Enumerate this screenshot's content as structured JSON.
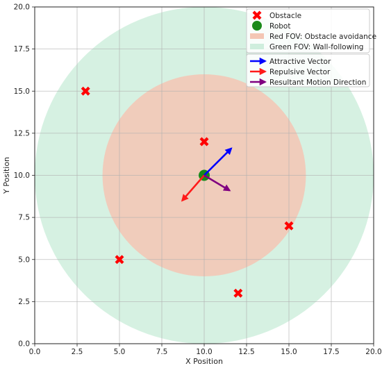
{
  "chart_data": {
    "type": "scatter",
    "xlabel": "X Position",
    "ylabel": "Y Position",
    "xlim": [
      0,
      20
    ],
    "ylim": [
      0,
      20
    ],
    "xticks": [
      "0.0",
      "2.5",
      "5.0",
      "7.5",
      "10.0",
      "12.5",
      "15.0",
      "17.5",
      "20.0"
    ],
    "yticks": [
      "0.0",
      "2.5",
      "5.0",
      "7.5",
      "10.0",
      "12.5",
      "15.0",
      "17.5",
      "20.0"
    ],
    "grid": true,
    "legend_position": "top-right",
    "obstacles": {
      "name": "Obstacle",
      "color": "#ff0000",
      "x": [
        3,
        10,
        15,
        5,
        12
      ],
      "y": [
        15,
        12,
        7,
        5,
        3
      ]
    },
    "robot": {
      "name": "Robot",
      "color": "#1a8a1a",
      "x": 10,
      "y": 10
    },
    "fov_regions": [
      {
        "name": "Red FOV: Obstacle avoidance",
        "center": [
          10,
          10
        ],
        "radius": 6,
        "color": "#f4c6b4"
      },
      {
        "name": "Green FOV: Wall-following",
        "center": [
          10,
          10
        ],
        "radius": 10,
        "color": "#cfeedd"
      }
    ],
    "vectors": [
      {
        "name": "Attractive Vector",
        "color": "#0000ff",
        "from": [
          10,
          10
        ],
        "to": [
          11.6,
          11.6
        ]
      },
      {
        "name": "Repulsive Vector",
        "color": "#ff1a1a",
        "from": [
          10,
          10
        ],
        "to": [
          8.7,
          8.5
        ]
      },
      {
        "name": "Resultant Motion Direction",
        "color": "#800080",
        "from": [
          10,
          10
        ],
        "to": [
          11.5,
          9.1
        ]
      }
    ]
  }
}
